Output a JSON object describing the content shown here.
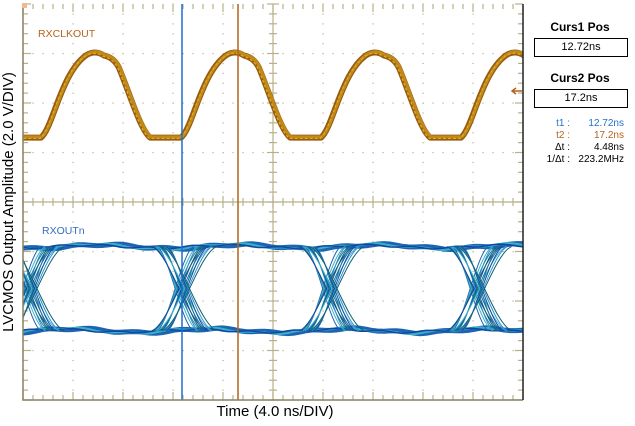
{
  "colors": {
    "grid": "#b8b08a",
    "frame": "#8a8060",
    "clock_trace": "#c08a1a",
    "clock_trace_dark": "#9a5a10",
    "clock_label": "#b5651d",
    "data_trace": "#1c64b4",
    "data_trace_light": "#3ab0c8",
    "data_label": "#2f6fc0",
    "cursor1": "#1f6fcf",
    "cursor2": "#b4621c"
  },
  "chart_data": {
    "type": "line",
    "title": "",
    "xlabel": "Time (4.0 ns/DIV)",
    "ylabel": "LVCMOS Output Amplitude (2.0 V/DIV)",
    "x_divisions": 10,
    "y_divisions": 8,
    "grid": true,
    "x_scale_ns_per_div": 4.0,
    "y_scale_v_per_div": 2.0,
    "series": [
      {
        "name": "RXCLKOUT",
        "kind": "clock waveform (persistence)",
        "period_divisions": 2.8,
        "high_level_div_from_top": 1.0,
        "low_level_div_from_top": 2.7
      },
      {
        "name": "RXOUTn",
        "kind": "eye diagram (persistence)",
        "unit_interval_divisions": 3.0,
        "crossings_x_div": [
          0.15,
          3.2,
          6.15,
          9.1
        ],
        "high_level_div_from_top": 4.9,
        "low_level_div_from_top": 6.6
      }
    ],
    "cursors": [
      {
        "name": "t1",
        "position": "12.72ns",
        "x_div": 3.18
      },
      {
        "name": "t2",
        "position": "17.2ns",
        "x_div": 4.3
      }
    ]
  },
  "traces": {
    "clock_label": "RXCLKOUT",
    "data_label": "RXOUTn"
  },
  "axes": {
    "xlabel": "Time (4.0 ns/DIV)",
    "ylabel": "LVCMOS Output Amplitude (2.0 V/DIV)"
  },
  "cursor_panel": {
    "curs1_title": "Curs1 Pos",
    "curs1_value": "12.72ns",
    "curs2_title": "Curs2 Pos",
    "curs2_value": "17.2ns",
    "measurements": [
      {
        "key": "t1 :",
        "value": "12.72ns",
        "color": "#1f6fcf"
      },
      {
        "key": "t2 :",
        "value": "17.2ns",
        "color": "#b4621c"
      },
      {
        "key": "Δt :",
        "value": "4.48ns",
        "color": "#000000"
      },
      {
        "key": "1/Δt :",
        "value": "223.2MHz",
        "color": "#000000"
      }
    ]
  }
}
